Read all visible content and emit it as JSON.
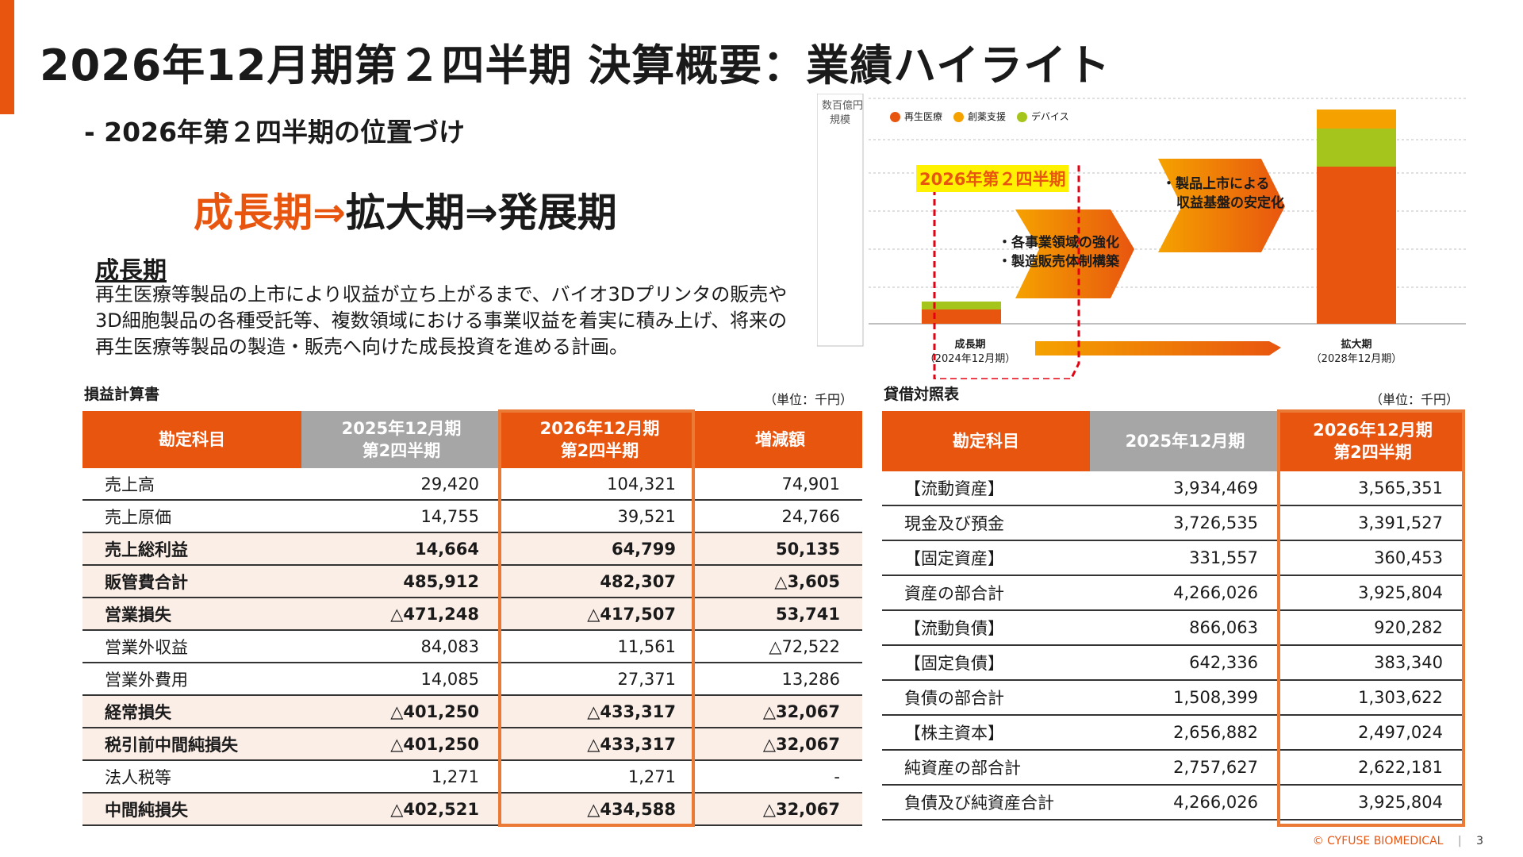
{
  "title": "2026年12月期第２四半期 決算概要：業績ハイライト",
  "subtitle": "- 2026年第２四半期の位置づけ",
  "phase": {
    "p1": "成長期",
    "arrow": "⇒",
    "p2": "拡大期",
    "p3": "発展期"
  },
  "growth": {
    "heading": "成長期",
    "text": "再生医療等製品の上市により収益が立ち上がるまで、バイオ3Dプリンタの販売や3D細胞製品の各種受託等、複数領域における事業収益を着実に積み上げ、将来の再生医療等製品の製造・販売へ向けた成長投資を進める計画。"
  },
  "chart": {
    "y_label_1": "数百億円",
    "y_label_2": "規模",
    "legend": [
      "再生医療",
      "創薬支援",
      "デバイス"
    ],
    "colors": {
      "regen": "#e8550f",
      "drug": "#f5a200",
      "device": "#a6c51c"
    },
    "quarter_label": "2026年第２四半期",
    "arrow1_line1": "・各事業領域の強化",
    "arrow1_line2": "・製造販売体制構築",
    "arrow2_line1": "・製品上市による",
    "arrow2_line2": "収益基盤の安定化",
    "x1_label": "成長期",
    "x1_sub": "（2024年12月期）",
    "x2_label": "拡大期",
    "x2_sub": "（2028年12月期）"
  },
  "pl": {
    "title": "損益計算書",
    "unit": "（単位：千円）",
    "headers": [
      "勘定科目",
      "2025年12月期\n第2四半期",
      "2026年12月期\n第2四半期",
      "増減額"
    ],
    "rows": [
      {
        "label": "売上高",
        "a": "29,420",
        "b": "104,321",
        "c": "74,901",
        "bold": false
      },
      {
        "label": "売上原価",
        "a": "14,755",
        "b": "39,521",
        "c": "24,766",
        "bold": false
      },
      {
        "label": "売上総利益",
        "a": "14,664",
        "b": "64,799",
        "c": "50,135",
        "bold": true
      },
      {
        "label": "販管費合計",
        "a": "485,912",
        "b": "482,307",
        "c": "△3,605",
        "bold": true
      },
      {
        "label": "営業損失",
        "a": "△471,248",
        "b": "△417,507",
        "c": "53,741",
        "bold": true
      },
      {
        "label": "営業外収益",
        "a": "84,083",
        "b": "11,561",
        "c": "△72,522",
        "bold": false
      },
      {
        "label": "営業外費用",
        "a": "14,085",
        "b": "27,371",
        "c": "13,286",
        "bold": false
      },
      {
        "label": "経常損失",
        "a": "△401,250",
        "b": "△433,317",
        "c": "△32,067",
        "bold": true
      },
      {
        "label": "税引前中間純損失",
        "a": "△401,250",
        "b": "△433,317",
        "c": "△32,067",
        "bold": true
      },
      {
        "label": "法人税等",
        "a": "1,271",
        "b": "1,271",
        "c": "-",
        "bold": false
      },
      {
        "label": "中間純損失",
        "a": "△402,521",
        "b": "△434,588",
        "c": "△32,067",
        "bold": true
      }
    ]
  },
  "bs": {
    "title": "貸借対照表",
    "unit": "（単位：千円）",
    "headers": [
      "勘定科目",
      "2025年12月期",
      "2026年12月期\n第2四半期"
    ],
    "rows": [
      {
        "label": "【流動資産】",
        "a": "3,934,469",
        "b": "3,565,351"
      },
      {
        "label": "現金及び預金",
        "a": "3,726,535",
        "b": "3,391,527"
      },
      {
        "label": "【固定資産】",
        "a": "331,557",
        "b": "360,453"
      },
      {
        "label": "資産の部合計",
        "a": "4,266,026",
        "b": "3,925,804"
      },
      {
        "label": "【流動負債】",
        "a": "866,063",
        "b": "920,282"
      },
      {
        "label": "【固定負債】",
        "a": "642,336",
        "b": "383,340"
      },
      {
        "label": "負債の部合計",
        "a": "1,508,399",
        "b": "1,303,622"
      },
      {
        "label": "【株主資本】",
        "a": "2,656,882",
        "b": "2,497,024"
      },
      {
        "label": "純資産の部合計",
        "a": "2,757,627",
        "b": "2,622,181"
      },
      {
        "label": "負債及び純資産合計",
        "a": "4,266,026",
        "b": "3,925,804"
      }
    ]
  },
  "footer": {
    "copyright": "© CYFUSE BIOMEDICAL",
    "page": "3"
  }
}
